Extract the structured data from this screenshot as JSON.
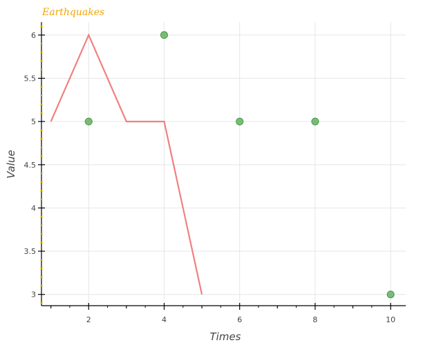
{
  "chart_data": {
    "type": "line",
    "title": "Earthquakes",
    "xlabel": "Times",
    "ylabel": "Value",
    "xlim": [
      0.75,
      10.4
    ],
    "ylim": [
      2.87,
      6.15
    ],
    "x_ticks": [
      2,
      4,
      6,
      8,
      10
    ],
    "y_ticks": [
      3,
      3.5,
      4,
      4.5,
      5,
      5.5,
      6
    ],
    "x_tick_labels": [
      "2",
      "4",
      "6",
      "8",
      "10"
    ],
    "y_tick_labels": [
      "3",
      "3.5",
      "4",
      "4.5",
      "5",
      "5.5",
      "6"
    ],
    "grid": true,
    "series": [
      {
        "type": "line",
        "color": "#f08080",
        "points": [
          {
            "x": 1,
            "y": 5
          },
          {
            "x": 2,
            "y": 6
          },
          {
            "x": 3,
            "y": 5
          },
          {
            "x": 4,
            "y": 5
          },
          {
            "x": 5,
            "y": 3
          }
        ]
      },
      {
        "type": "scatter",
        "color": "#3a9a3a",
        "points": [
          {
            "x": 2,
            "y": 5
          },
          {
            "x": 4,
            "y": 6
          },
          {
            "x": 6,
            "y": 5
          },
          {
            "x": 8,
            "y": 5
          },
          {
            "x": 10,
            "y": 3
          }
        ]
      }
    ],
    "colors": {
      "title": "#f5a300",
      "y_axis_minor_ticks": "#ffd700",
      "axis": "#000000",
      "grid": "#e6e6e6"
    }
  }
}
